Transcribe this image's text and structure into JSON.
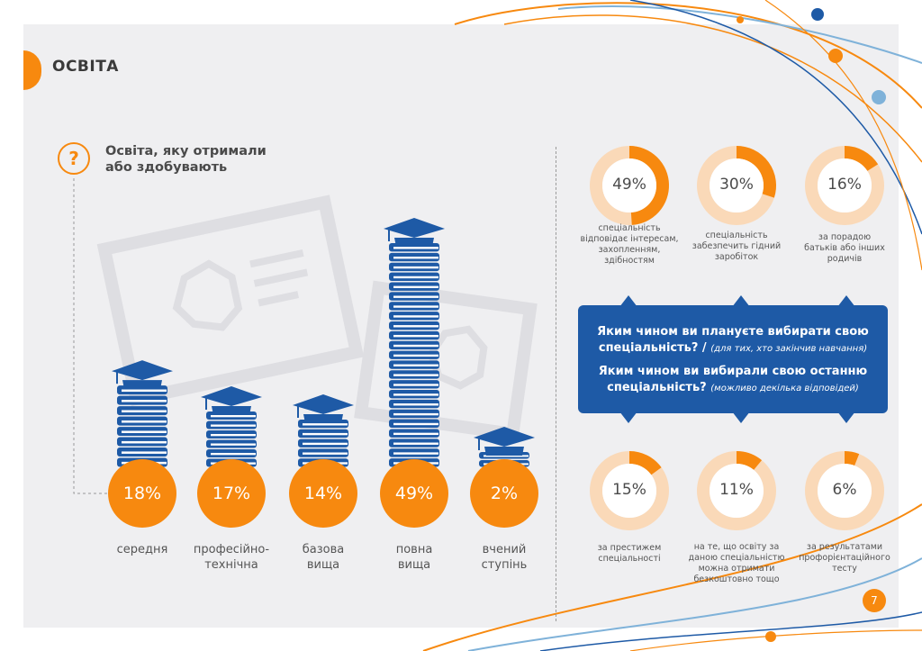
{
  "page": {
    "title": "ОСВІТА",
    "page_number": "7"
  },
  "colors": {
    "accent": "#f7890f",
    "accent_light": "#fad9b8",
    "brand_blue": "#1e5aa6",
    "background": "#efeff1"
  },
  "icons": {
    "question": "question-mark-icon",
    "book_stack": "book-stack-icon",
    "graduation_cap": "graduation-cap-icon"
  },
  "left": {
    "question_icon_glyph": "?",
    "heading": "Освіта, яку отримали або здобувають"
  },
  "right": {
    "question1_bold": "Яким чином ви плануєте вибирати свою спеціальність? /",
    "question1_note": "(для тих, хто закінчив навчання)",
    "question2_bold": "Яким чином ви вибирали свою останню спеціальність?",
    "question2_note": "(можливо декілька відповідей)"
  },
  "chart_data": [
    {
      "type": "bar",
      "title": "Освіта, яку отримали або здобувають",
      "categories": [
        "середня",
        "професійно-технічна",
        "базова вища",
        "повна вища",
        "вчений ступінь"
      ],
      "category_lines": [
        [
          "середня"
        ],
        [
          "професійно-",
          "технічна"
        ],
        [
          "базова",
          "вища"
        ],
        [
          "повна",
          "вища"
        ],
        [
          "вчений",
          "ступінь"
        ]
      ],
      "values": [
        18,
        17,
        14,
        49,
        2
      ],
      "value_labels": [
        "18%",
        "17%",
        "14%",
        "49%",
        "2%"
      ],
      "unit": "%"
    },
    {
      "type": "pie",
      "items": [
        {
          "value": 49,
          "label": "49%",
          "caption_lines": [
            "спеціальність",
            "відповідає інтересам,",
            "захопленням,",
            "здібностям"
          ]
        },
        {
          "value": 30,
          "label": "30%",
          "caption_lines": [
            "спеціальність",
            "забезпечить гідний",
            "заробіток"
          ]
        },
        {
          "value": 16,
          "label": "16%",
          "caption_lines": [
            "за порадою",
            "батьків або інших",
            "родичів"
          ]
        },
        {
          "value": 15,
          "label": "15%",
          "caption_lines": [
            "за престижем",
            "спеціальності"
          ]
        },
        {
          "value": 11,
          "label": "11%",
          "caption_lines": [
            "на те, що освіту за",
            "даною спеціальністю",
            "можна отримати",
            "безкоштовно тощо"
          ]
        },
        {
          "value": 6,
          "label": "6%",
          "caption_lines": [
            "за результатами",
            "профорієнтаційного",
            "тесту"
          ]
        }
      ]
    }
  ]
}
